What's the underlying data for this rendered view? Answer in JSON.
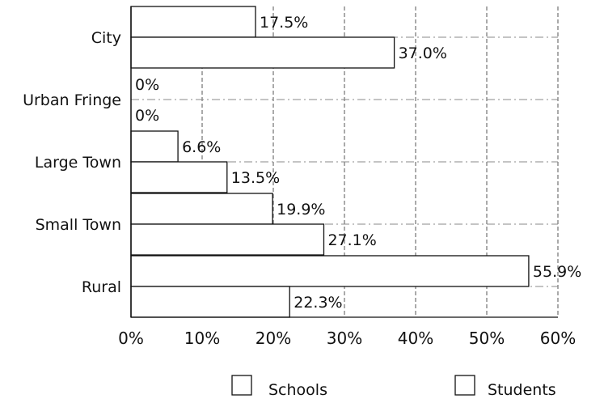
{
  "chart_data": {
    "type": "bar",
    "orientation": "horizontal",
    "categories": [
      "City",
      "Urban Fringe",
      "Large Town",
      "Small Town",
      "Rural"
    ],
    "series": [
      {
        "name": "Schools",
        "values": [
          17.5,
          0,
          6.6,
          19.9,
          55.9
        ]
      },
      {
        "name": "Students",
        "values": [
          37.0,
          0,
          13.5,
          27.1,
          22.3
        ]
      }
    ],
    "value_labels": [
      [
        "17.5%",
        "0%",
        "6.6%",
        "19.9%",
        "55.9%"
      ],
      [
        "37.0%",
        "0%",
        "13.5%",
        "27.1%",
        "22.3%"
      ]
    ],
    "xticks": [
      "0%",
      "10%",
      "20%",
      "30%",
      "40%",
      "50%",
      "60%"
    ],
    "xlim": [
      0,
      60
    ],
    "title": "",
    "xlabel": "",
    "ylabel": "",
    "grid": "vertical-dashed",
    "legend_position": "bottom",
    "colors": {
      "bar_fill": "#ffffff",
      "bar_stroke": "#111111",
      "grid": "#555555"
    }
  }
}
